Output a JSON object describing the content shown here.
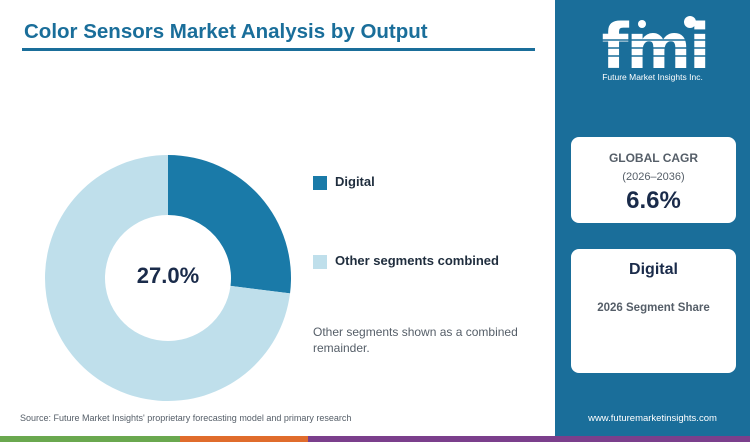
{
  "header": {
    "title": "Color Sensors Market Analysis by Output"
  },
  "chart_data": {
    "type": "pie",
    "categories": [
      "Digital",
      "Other segments combined"
    ],
    "values": [
      27.0,
      73.0
    ],
    "colors": [
      "#1a7aa8",
      "#bfdfeb"
    ],
    "center_label": "27.0%",
    "legend_position": "right",
    "note": "Other segments shown as a combined remainder."
  },
  "source": "Source: Future Market Insights' proprietary forecasting model and primary research",
  "brand": {
    "logo_text": "fmi",
    "tagline": "Future Market Insights Inc.",
    "website": "www.futuremarketinsights.com"
  },
  "cagr_card": {
    "label": "GLOBAL CAGR",
    "period": "(2026–2036)",
    "value": "6.6%"
  },
  "segment_card": {
    "name": "Digital",
    "caption": "2026 Segment Share"
  },
  "colors": {
    "primary": "#1a6e9a",
    "footer": [
      "#6aa84f",
      "#e06c2c",
      "#7b3f8c"
    ]
  }
}
